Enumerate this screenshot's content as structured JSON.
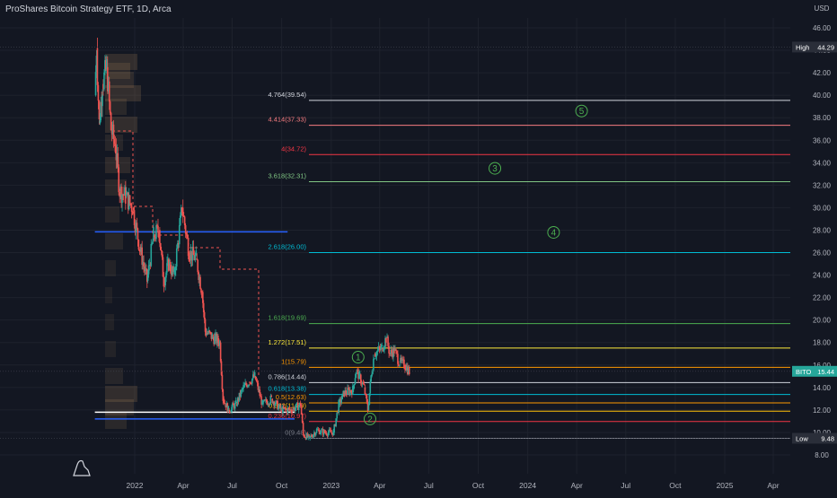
{
  "header": {
    "title": "ProShares Bitcoin Strategy ETF, 1D, Arca",
    "currency": "USD"
  },
  "colors": {
    "background": "#131722",
    "grid": "#1e222d",
    "axis_text": "#b2b5be",
    "candle_up": "#26a69a",
    "candle_down": "#ef5350",
    "wave_label": "#4caf50",
    "blue_level": "#2962ff",
    "price_tag": "#26a69a",
    "tag_bg": "#131722"
  },
  "chart_data": {
    "type": "candlestick",
    "title": "ProShares Bitcoin Strategy ETF, 1D, Arca",
    "ylim": [
      8,
      47
    ],
    "y_ticks": [
      "8.00",
      "10.00",
      "12.00",
      "14.00",
      "16.00",
      "18.00",
      "20.00",
      "22.00",
      "24.00",
      "26.00",
      "28.00",
      "30.00",
      "32.00",
      "34.00",
      "36.00",
      "38.00",
      "40.00",
      "42.00",
      "44.00",
      "46.00"
    ],
    "x_ticks": [
      "2022",
      "Apr",
      "Jul",
      "Oct",
      "2023",
      "Apr",
      "Jul",
      "Oct",
      "2024",
      "Apr",
      "Jul",
      "Oct",
      "2025",
      "Apr"
    ],
    "x_tick_dates": [
      "2022-01-01",
      "2022-04-01",
      "2022-07-01",
      "2022-10-01",
      "2023-01-01",
      "2023-04-01",
      "2023-07-01",
      "2023-10-01",
      "2024-01-01",
      "2024-04-01",
      "2024-07-01",
      "2024-10-01",
      "2025-01-01",
      "2025-04-01"
    ],
    "price_path": [
      [
        "2021-10-19",
        40.0
      ],
      [
        "2021-10-22",
        44.2
      ],
      [
        "2021-10-27",
        37.5
      ],
      [
        "2021-11-02",
        41.0
      ],
      [
        "2021-11-10",
        42.5
      ],
      [
        "2021-11-18",
        37.0
      ],
      [
        "2021-11-26",
        35.5
      ],
      [
        "2021-12-04",
        31.5
      ],
      [
        "2021-12-15",
        31.0
      ],
      [
        "2021-12-28",
        30.0
      ],
      [
        "2022-01-10",
        26.5
      ],
      [
        "2022-01-24",
        23.5
      ],
      [
        "2022-02-05",
        27.5
      ],
      [
        "2022-02-15",
        28.0
      ],
      [
        "2022-02-24",
        23.5
      ],
      [
        "2022-03-05",
        25.0
      ],
      [
        "2022-03-15",
        24.0
      ],
      [
        "2022-03-30",
        30.0
      ],
      [
        "2022-04-12",
        26.0
      ],
      [
        "2022-04-25",
        25.5
      ],
      [
        "2022-05-06",
        22.5
      ],
      [
        "2022-05-12",
        19.0
      ],
      [
        "2022-05-25",
        18.5
      ],
      [
        "2022-06-08",
        18.0
      ],
      [
        "2022-06-14",
        13.0
      ],
      [
        "2022-06-24",
        12.0
      ],
      [
        "2022-07-08",
        12.5
      ],
      [
        "2022-07-22",
        14.0
      ],
      [
        "2022-08-01",
        14.5
      ],
      [
        "2022-08-12",
        15.0
      ],
      [
        "2022-08-26",
        12.5
      ],
      [
        "2022-09-12",
        13.0
      ],
      [
        "2022-09-30",
        12.0
      ],
      [
        "2022-10-20",
        12.0
      ],
      [
        "2022-11-05",
        12.5
      ],
      [
        "2022-11-10",
        9.8
      ],
      [
        "2022-11-21",
        9.48
      ],
      [
        "2022-12-05",
        10.2
      ],
      [
        "2022-12-20",
        10.0
      ],
      [
        "2023-01-05",
        10.0
      ],
      [
        "2023-01-15",
        12.5
      ],
      [
        "2023-01-25",
        13.5
      ],
      [
        "2023-02-10",
        13.8
      ],
      [
        "2023-02-16",
        15.5
      ],
      [
        "2023-02-22",
        15.0
      ],
      [
        "2023-03-03",
        14.0
      ],
      [
        "2023-03-10",
        12.0
      ],
      [
        "2023-03-16",
        15.0
      ],
      [
        "2023-03-22",
        17.0
      ],
      [
        "2023-04-05",
        17.5
      ],
      [
        "2023-04-13",
        18.4
      ],
      [
        "2023-04-20",
        17.0
      ],
      [
        "2023-04-28",
        17.3
      ],
      [
        "2023-05-08",
        16.2
      ],
      [
        "2023-05-18",
        16.0
      ],
      [
        "2023-05-26",
        15.4
      ]
    ],
    "high": {
      "label": "High",
      "value": "44.29"
    },
    "low": {
      "label": "Low",
      "value": "9.48"
    },
    "last": {
      "label": "BITO",
      "value": "15.44"
    },
    "fib_levels": [
      {
        "ratio": "4.764",
        "price": "39.54",
        "label": "4.764(39.54)",
        "color": "#d1d4dc"
      },
      {
        "ratio": "4.414",
        "price": "37.33",
        "label": "4.414(37.33)",
        "color": "#f77c80"
      },
      {
        "ratio": "4",
        "price": "34.72",
        "label": "4(34.72)",
        "color": "#f23645"
      },
      {
        "ratio": "3.618",
        "price": "32.31",
        "label": "3.618(32.31)",
        "color": "#81c784"
      },
      {
        "ratio": "2.618",
        "price": "26.00",
        "label": "2.618(26.00)",
        "color": "#00bcd4"
      },
      {
        "ratio": "1.618",
        "price": "19.69",
        "label": "1.618(19.69)",
        "color": "#4caf50"
      },
      {
        "ratio": "1.272",
        "price": "17.51",
        "label": "1.272(17.51)",
        "color": "#ffeb3b"
      },
      {
        "ratio": "1",
        "price": "15.79",
        "label": "1(15.79)",
        "color": "#ff9800"
      },
      {
        "ratio": "0.786",
        "price": "14.44",
        "label": "0.786(14.44)",
        "color": "#d1d4dc"
      },
      {
        "ratio": "0.618",
        "price": "13.38",
        "label": "0.618(13.38)",
        "color": "#00bcd4"
      },
      {
        "ratio": "0.5",
        "price": "12.63",
        "label": "0.5(12.63)",
        "color": "#ff9800"
      },
      {
        "ratio": "0.382",
        "price": "11.89",
        "label": "0.382(11.89)",
        "color": "#ffc107"
      },
      {
        "ratio": "0.236",
        "price": "10.97",
        "label": "0.236(10.97)",
        "color": "#f23645"
      },
      {
        "ratio": "0",
        "price": "9.48",
        "label": "0(9.48)",
        "color": "#787b86"
      }
    ],
    "wave_labels": [
      {
        "text": "1",
        "date": "2023-02-20",
        "price": "16.7"
      },
      {
        "text": "2",
        "date": "2023-03-14",
        "price": "11.2"
      },
      {
        "text": "3",
        "date": "2023-11-01",
        "price": "33.5"
      },
      {
        "text": "4",
        "date": "2024-02-18",
        "price": "27.8"
      },
      {
        "text": "5",
        "date": "2024-04-10",
        "price": "38.6"
      }
    ],
    "horizontal_levels": [
      {
        "price": "27.85",
        "color": "#2962ff",
        "start": "2021-10-19",
        "end": "2022-10-12"
      },
      {
        "price": "11.80",
        "color": "#ffffff",
        "start": "2021-10-19",
        "end": "2022-10-25"
      },
      {
        "price": "11.20",
        "color": "#2962ff",
        "start": "2021-10-19",
        "end": "2022-10-25"
      }
    ]
  }
}
